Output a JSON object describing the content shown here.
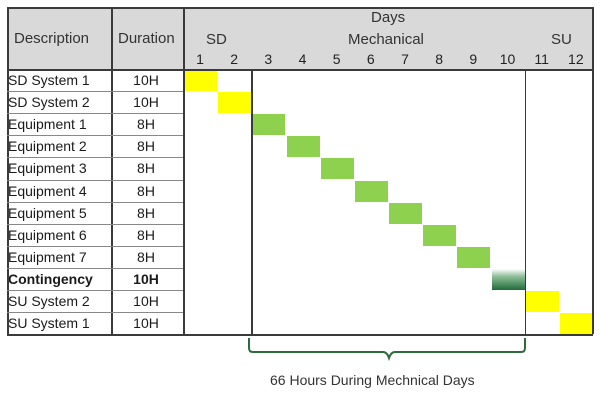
{
  "headers": {
    "description": "Description",
    "duration": "Duration",
    "days": "Days",
    "sd": "SD",
    "mechanical": "Mechanical",
    "su": "SU"
  },
  "day_numbers": [
    "1",
    "2",
    "3",
    "4",
    "5",
    "6",
    "7",
    "8",
    "9",
    "10",
    "11",
    "12"
  ],
  "rows": [
    {
      "description": "SD System 1",
      "duration": "10H",
      "bold": false,
      "day": 1,
      "color": "yellow"
    },
    {
      "description": "SD System 2",
      "duration": "10H",
      "bold": false,
      "day": 2,
      "color": "yellow"
    },
    {
      "description": "Equipment 1",
      "duration": "8H",
      "bold": false,
      "day": 3,
      "color": "green"
    },
    {
      "description": "Equipment 2",
      "duration": "8H",
      "bold": false,
      "day": 4,
      "color": "green"
    },
    {
      "description": "Equipment 3",
      "duration": "8H",
      "bold": false,
      "day": 5,
      "color": "green"
    },
    {
      "description": "Equipment 4",
      "duration": "8H",
      "bold": false,
      "day": 6,
      "color": "green"
    },
    {
      "description": "Equipment 5",
      "duration": "8H",
      "bold": false,
      "day": 7,
      "color": "green"
    },
    {
      "description": "Equipment 6",
      "duration": "8H",
      "bold": false,
      "day": 8,
      "color": "green"
    },
    {
      "description": "Equipment 7",
      "duration": "8H",
      "bold": false,
      "day": 9,
      "color": "green"
    },
    {
      "description": "Contingency",
      "duration": "10H",
      "bold": true,
      "day": 10,
      "color": "darkgreen"
    },
    {
      "description": "SU System 2",
      "duration": "10H",
      "bold": false,
      "day": 11,
      "color": "yellow"
    },
    {
      "description": "SU System 1",
      "duration": "10H",
      "bold": false,
      "day": 12,
      "color": "yellow"
    }
  ],
  "colors": {
    "yellow": "#ffff00",
    "green": "#8ed14f",
    "darkgreen": "#1f6b3a",
    "header_bg": "#d9d9d9",
    "brace": "#2e6b3c"
  },
  "caption": "66 Hours During Mechnical Days"
}
